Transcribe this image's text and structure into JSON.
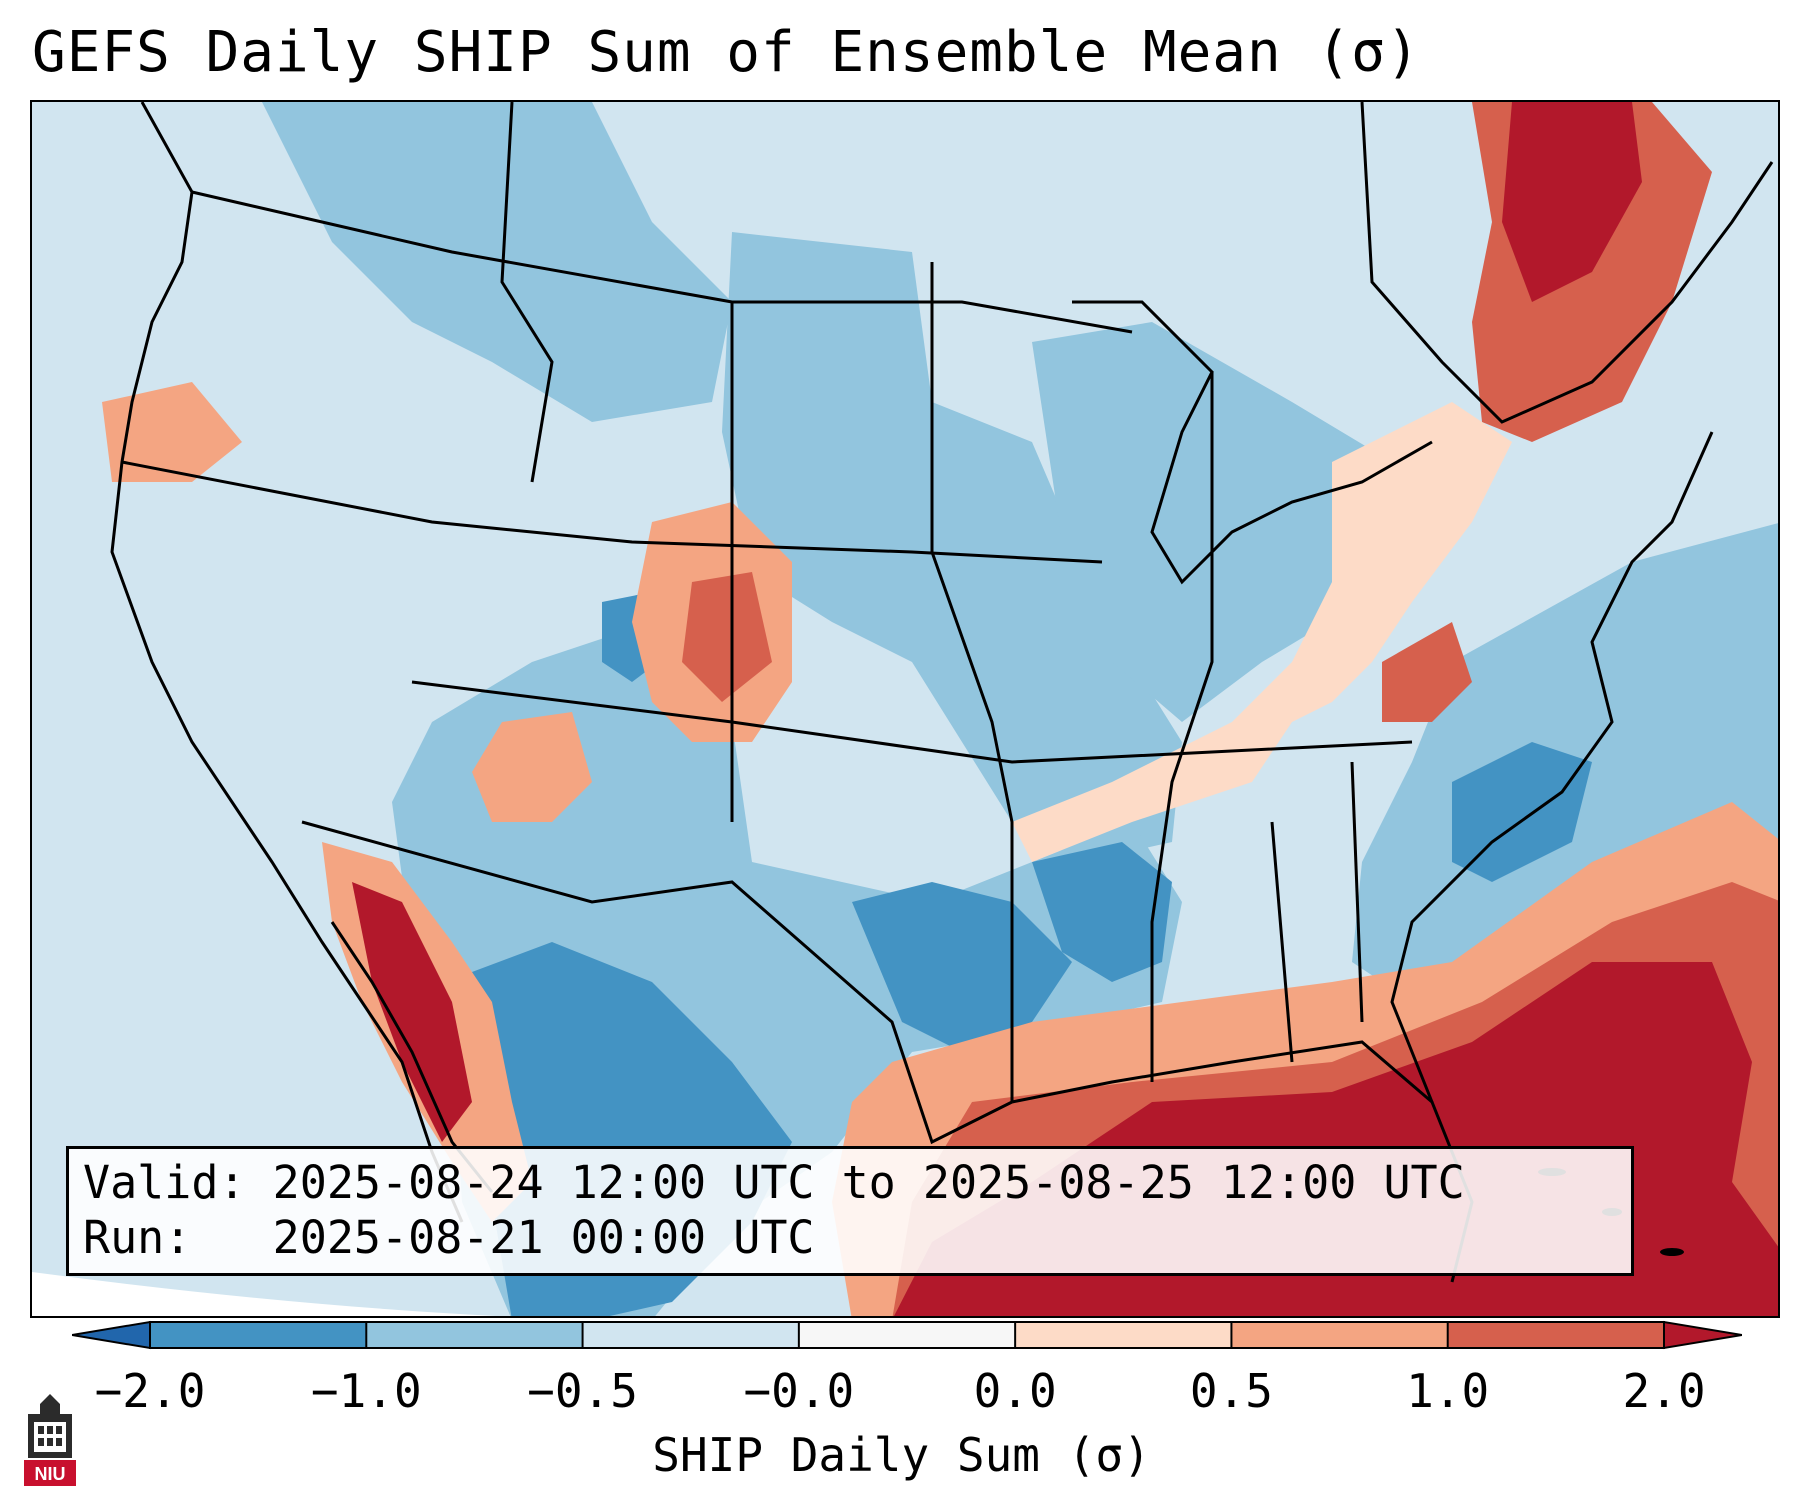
{
  "title": "GEFS Daily SHIP Sum of Ensemble Mean (σ)",
  "info": {
    "valid_label": "Valid:",
    "valid_value": "2025-08-24 12:00 UTC to 2025-08-25 12:00 UTC",
    "run_label": "Run:",
    "run_value": "2025-08-21 00:00 UTC"
  },
  "colorbar": {
    "label": "SHIP Daily Sum (σ)",
    "ticks": [
      "−2.0",
      "−1.0",
      "−0.5",
      "−0.0",
      "0.0",
      "0.5",
      "1.0",
      "2.0"
    ],
    "colors": [
      "#2166ac",
      "#4393c3",
      "#92c5de",
      "#d1e5f0",
      "#f7f7f7",
      "#fddbc7",
      "#f4a582",
      "#d6604d",
      "#b2182b"
    ]
  },
  "logo": {
    "text": "NIU",
    "icon": "niu-tower-logo-icon"
  }
}
